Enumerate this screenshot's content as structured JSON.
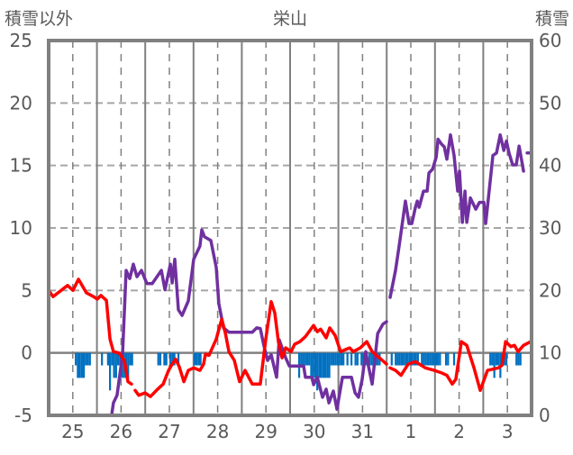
{
  "chart_data": {
    "type": "line",
    "title": "栄山",
    "ylabel_left": "積雪以外",
    "ylabel_right": "積雪",
    "xlabel": "",
    "x_unit": "hours since 25th 00:00",
    "xlim": [
      0,
      240
    ],
    "ylim_left": [
      -5,
      25
    ],
    "ylim_right": [
      0,
      60
    ],
    "yticks_left": [
      "25",
      "20",
      "15",
      "10",
      "5",
      "0",
      "-5"
    ],
    "yticks_right": [
      "60",
      "50",
      "40",
      "30",
      "20",
      "10",
      "0"
    ],
    "xtick_labels": [
      "25",
      "26",
      "27",
      "28",
      "29",
      "30",
      "31",
      "1",
      "2",
      "3"
    ],
    "grid": true,
    "colors": {
      "temperature": "#ff0000",
      "snow_depth": "#7030a0",
      "bars": "#0070c0",
      "grid": "#808080"
    },
    "series": [
      {
        "name": "red-line",
        "axis": "left",
        "points": [
          [
            0,
            5.0
          ],
          [
            2.2,
            4.5
          ],
          [
            9.4,
            5.4
          ],
          [
            12.1,
            5.0
          ],
          [
            14.8,
            5.9
          ],
          [
            18.8,
            4.8
          ],
          [
            22.4,
            4.5
          ],
          [
            24.2,
            4.3
          ],
          [
            26.0,
            4.6
          ],
          [
            28.7,
            4.2
          ],
          [
            30.5,
            1.1
          ],
          [
            32.2,
            0.1
          ],
          [
            34.9,
            0.0
          ],
          [
            37.6,
            -0.6
          ],
          [
            39.4,
            -2.3
          ],
          [
            41.2,
            -2.5
          ],
          null,
          [
            43,
            -3.0
          ],
          [
            44.8,
            -3.4
          ],
          [
            47.9,
            -3.2
          ],
          [
            50.6,
            -3.5
          ],
          [
            54.2,
            -2.9
          ],
          [
            56.9,
            -2.5
          ],
          [
            59.6,
            -1.4
          ],
          [
            61.4,
            -0.9
          ],
          [
            63.1,
            -0.5
          ],
          [
            64.9,
            -1.1
          ],
          [
            67.2,
            -2.3
          ],
          [
            69.4,
            -1.4
          ],
          [
            72.1,
            -1.2
          ],
          [
            75.2,
            -1.4
          ],
          [
            77.0,
            -0.9
          ],
          [
            77.9,
            -0.1
          ],
          [
            79.7,
            -0.2
          ],
          [
            83.3,
            1.1
          ],
          [
            86.0,
            2.7
          ],
          [
            87.8,
            1.6
          ],
          [
            89.6,
            0.1
          ],
          [
            92.3,
            -0.6
          ],
          [
            94.9,
            -2.3
          ],
          [
            97.6,
            -1.4
          ],
          [
            101.2,
            -2.5
          ],
          [
            105.2,
            -2.5
          ],
          [
            107.9,
            1.1
          ],
          [
            110.6,
            4.1
          ],
          [
            112.4,
            3.2
          ],
          [
            114.2,
            0.9
          ],
          [
            116.0,
            -0.4
          ],
          [
            117.8,
            0.4
          ],
          [
            120.5,
            0.1
          ],
          [
            122.3,
            0.7
          ],
          [
            124.9,
            0.9
          ],
          [
            127.6,
            1.3
          ],
          [
            131.7,
            2.2
          ],
          [
            133.5,
            1.7
          ],
          [
            135.2,
            1.9
          ],
          [
            137.9,
            1.2
          ],
          [
            139.7,
            2.0
          ],
          [
            142.4,
            1.4
          ],
          [
            145.1,
            0.1
          ],
          [
            149.6,
            0.4
          ],
          [
            151.4,
            0.1
          ],
          [
            154.9,
            0.4
          ],
          [
            158.1,
            0.9
          ],
          [
            160.8,
            0.1
          ],
          [
            164.4,
            -0.4
          ],
          [
            167.9,
            -0.9
          ],
          null,
          [
            169.7,
            -1.2
          ],
          [
            172.4,
            -1.4
          ],
          [
            175.1,
            -1.8
          ],
          [
            178.7,
            -0.9
          ],
          [
            182.3,
            -0.7
          ],
          [
            187.2,
            -1.2
          ],
          [
            191.7,
            -1.4
          ],
          [
            195.3,
            -1.6
          ],
          [
            197.9,
            -1.8
          ],
          [
            200.6,
            -2.5
          ],
          [
            202.4,
            -2.1
          ],
          [
            205.1,
            0.9
          ],
          [
            207.8,
            0.6
          ],
          [
            211.4,
            -1.2
          ],
          [
            214.5,
            -3.0
          ],
          [
            218.1,
            -1.4
          ],
          [
            223.5,
            -1.2
          ],
          [
            225.3,
            -1.0
          ],
          [
            227.1,
            0.9
          ],
          [
            229.7,
            0.5
          ],
          [
            231.5,
            0.6
          ],
          [
            233.3,
            0.1
          ],
          [
            236.0,
            0.6
          ],
          [
            239.6,
            0.9
          ]
        ]
      },
      {
        "name": "purple-line-snow-depth",
        "axis": "right",
        "points": [
          [
            0,
            0
          ],
          [
            31.3,
            0
          ],
          [
            32.2,
            2.0
          ],
          [
            34.0,
            3.2
          ],
          [
            36.7,
            9.7
          ],
          [
            38.5,
            23.2
          ],
          [
            40.3,
            21.9
          ],
          [
            42.1,
            24.2
          ],
          [
            43.9,
            22.2
          ],
          [
            46.1,
            23.2
          ],
          [
            48.8,
            21.1
          ],
          [
            51.5,
            21.1
          ],
          [
            56.0,
            23.2
          ],
          [
            57.8,
            20.1
          ],
          [
            60.5,
            24.2
          ],
          [
            61.4,
            21.2
          ],
          [
            62.7,
            25.0
          ],
          [
            64.5,
            16.9
          ],
          [
            66.3,
            16.0
          ],
          [
            69.4,
            18.3
          ],
          [
            72.1,
            25.0
          ],
          [
            75.2,
            27.1
          ],
          [
            76.1,
            29.7
          ],
          [
            77.4,
            28.6
          ],
          [
            80.6,
            28.0
          ],
          [
            83.3,
            23.7
          ],
          [
            84.6,
            17.9
          ],
          [
            86.9,
            14.0
          ],
          [
            89.6,
            13.3
          ],
          [
            101.2,
            13.3
          ],
          [
            103.4,
            14.0
          ],
          [
            105.2,
            13.9
          ],
          [
            107.0,
            11.1
          ],
          [
            108.8,
            8.8
          ],
          [
            110.6,
            9.7
          ],
          [
            113.3,
            6.1
          ],
          [
            114.6,
            12.1
          ],
          [
            117.8,
            9.2
          ],
          [
            119.6,
            7.9
          ],
          [
            126.7,
            7.9
          ],
          [
            127.6,
            6.1
          ],
          [
            130.8,
            6.1
          ],
          [
            131.7,
            4.9
          ],
          [
            133.5,
            6.1
          ],
          [
            136.1,
            2.9
          ],
          [
            137.9,
            4.2
          ],
          [
            139.3,
            2.0
          ],
          [
            141.5,
            3.9
          ],
          [
            143.3,
            1.0
          ],
          [
            146.0,
            6.1
          ],
          [
            150.5,
            6.1
          ],
          [
            152.3,
            3.6
          ],
          [
            154.0,
            2.9
          ],
          [
            155.8,
            5.8
          ],
          [
            157.6,
            10.2
          ],
          [
            159.0,
            7.8
          ],
          [
            160.8,
            5.0
          ],
          [
            163.5,
            13.1
          ],
          [
            166.1,
            14.6
          ],
          [
            167.9,
            15.0
          ],
          null,
          [
            169.7,
            18.9
          ],
          [
            172.4,
            23.2
          ],
          [
            174.2,
            27.1
          ],
          [
            177.3,
            34.3
          ],
          [
            179.1,
            30.7
          ],
          [
            180.5,
            30.7
          ],
          [
            182.3,
            33.3
          ],
          [
            183.2,
            34.3
          ],
          [
            184.1,
            33.3
          ],
          [
            186.3,
            35.9
          ],
          [
            188.1,
            35.9
          ],
          [
            189.0,
            38.8
          ],
          [
            190.8,
            39.4
          ],
          [
            192.6,
            41.3
          ],
          [
            193.5,
            44.2
          ],
          [
            195.3,
            43.4
          ],
          [
            196.6,
            43.0
          ],
          [
            197.9,
            41.0
          ],
          [
            199.7,
            44.9
          ],
          [
            201.5,
            41.6
          ],
          [
            203.3,
            35.9
          ],
          [
            204.2,
            39.1
          ],
          [
            205.6,
            30.9
          ],
          [
            206.9,
            35.9
          ],
          [
            207.8,
            30.9
          ],
          [
            209.6,
            34.8
          ],
          [
            212.3,
            33.0
          ],
          [
            214.1,
            34.1
          ],
          [
            216.3,
            34.1
          ],
          [
            217.2,
            30.7
          ],
          [
            220.8,
            41.6
          ],
          [
            222.6,
            42.0
          ],
          [
            224.4,
            44.9
          ],
          [
            226.2,
            42.4
          ],
          [
            227.5,
            43.9
          ],
          [
            228.8,
            42.0
          ],
          [
            230.6,
            40.1
          ],
          [
            232.4,
            40.1
          ],
          [
            233.8,
            43.1
          ],
          [
            236.0,
            39.1
          ],
          null,
          [
            237.8,
            42.0
          ],
          [
            240,
            42.0
          ]
        ]
      }
    ],
    "bars": {
      "name": "blue-bars",
      "axis": "left",
      "points": [
        [
          13,
          -1
        ],
        [
          14,
          -2
        ],
        [
          15,
          -2
        ],
        [
          16,
          -2
        ],
        [
          17,
          -2
        ],
        [
          18,
          -1
        ],
        [
          19,
          -1
        ],
        [
          20,
          -1
        ],
        [
          26,
          -1
        ],
        [
          29,
          -1
        ],
        [
          30,
          -3
        ],
        [
          31,
          -1
        ],
        [
          32,
          -2
        ],
        [
          33,
          -2
        ],
        [
          34,
          -1
        ],
        [
          35,
          -1
        ],
        [
          36,
          -2
        ],
        [
          37,
          -2
        ],
        [
          38,
          -2
        ],
        [
          39,
          -2
        ],
        [
          40,
          -1
        ],
        [
          41,
          -1
        ],
        [
          54,
          -1
        ],
        [
          55,
          -1
        ],
        [
          57,
          -1
        ],
        [
          58,
          -1
        ],
        [
          60,
          -1
        ],
        [
          61,
          -1
        ],
        [
          62,
          -1
        ],
        [
          64,
          -1
        ],
        [
          72,
          -1
        ],
        [
          73,
          -1
        ],
        [
          74,
          -1
        ],
        [
          75,
          -1
        ],
        [
          124,
          -2
        ],
        [
          125,
          -1
        ],
        [
          126,
          -1
        ],
        [
          127,
          -1
        ],
        [
          128,
          -1
        ],
        [
          129,
          -1
        ],
        [
          130,
          -2
        ],
        [
          131,
          -2
        ],
        [
          132,
          -2
        ],
        [
          133,
          -3
        ],
        [
          134,
          -2
        ],
        [
          135,
          -2
        ],
        [
          136,
          -2
        ],
        [
          137,
          -2
        ],
        [
          138,
          -2
        ],
        [
          139,
          -2
        ],
        [
          140,
          -1
        ],
        [
          141,
          -1
        ],
        [
          142,
          -1
        ],
        [
          143,
          -1
        ],
        [
          144,
          -1
        ],
        [
          145,
          -1
        ],
        [
          146,
          -1
        ],
        [
          148,
          -1
        ],
        [
          150,
          -1
        ],
        [
          152,
          -1
        ],
        [
          153,
          -1
        ],
        [
          155,
          -1
        ],
        [
          156,
          -1
        ],
        [
          157,
          -1
        ],
        [
          159,
          -1
        ],
        [
          160,
          -1
        ],
        [
          161,
          -1
        ],
        [
          162,
          -1
        ],
        [
          163,
          -1
        ],
        [
          164,
          -1
        ],
        [
          170,
          -1
        ],
        [
          172,
          -1
        ],
        [
          173,
          -1
        ],
        [
          174,
          -1
        ],
        [
          175,
          -1
        ],
        [
          176,
          -1
        ],
        [
          177,
          -1
        ],
        [
          178,
          -1
        ],
        [
          179,
          -1
        ],
        [
          180,
          -1
        ],
        [
          181,
          -1
        ],
        [
          182,
          -1
        ],
        [
          183,
          -1
        ],
        [
          185,
          -1
        ],
        [
          186,
          -1
        ],
        [
          187,
          -1
        ],
        [
          188,
          -1
        ],
        [
          189,
          -1
        ],
        [
          190,
          -1
        ],
        [
          191,
          -1
        ],
        [
          192,
          -1
        ],
        [
          193,
          -1
        ],
        [
          194,
          -1
        ],
        [
          197,
          -1
        ],
        [
          198,
          -1
        ],
        [
          201,
          -1
        ],
        [
          219,
          -1
        ],
        [
          220,
          -1
        ],
        [
          221,
          -2
        ],
        [
          222,
          -1
        ],
        [
          223,
          -1
        ],
        [
          224,
          -2
        ],
        [
          225,
          -1
        ],
        [
          226,
          -1
        ],
        [
          227,
          -1
        ],
        [
          232,
          -1
        ],
        [
          233,
          -1
        ],
        [
          234,
          -1
        ]
      ]
    }
  }
}
